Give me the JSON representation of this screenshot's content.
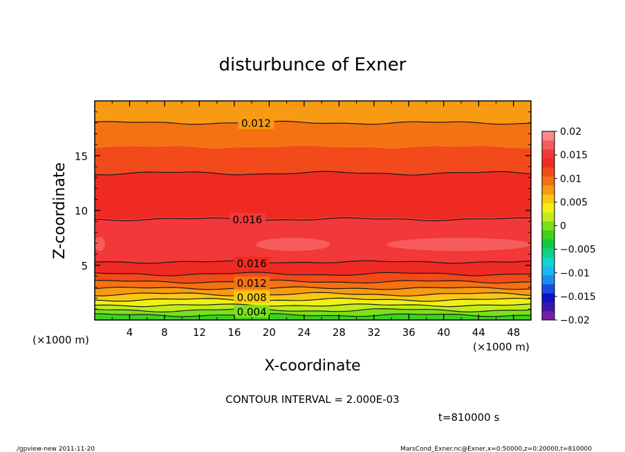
{
  "chart_data": {
    "type": "contour",
    "title": "disturbunce of Exner",
    "xlabel": "X-coordinate",
    "ylabel": "Z-coordinate",
    "x_unit_left": "(×1000 m)",
    "x_unit_right": "(×1000 m)",
    "xlim": [
      0,
      50
    ],
    "ylim": [
      0,
      20
    ],
    "x_ticks": [
      4,
      8,
      12,
      16,
      20,
      24,
      28,
      32,
      36,
      40,
      44,
      48
    ],
    "y_ticks": [
      5,
      10,
      15
    ],
    "contour_interval_text": "CONTOUR INTERVAL = 2.000E-03",
    "time_text": "t=810000 s",
    "footer_left": "./gpview-new   2011-11-20",
    "footer_right": "MarsCond_Exner.nc@Exner,x=0:50000,z=0:20000,t=810000",
    "contour_labels": [
      {
        "text": "0.012",
        "x": 18.5,
        "z": 18.0
      },
      {
        "text": "0.016",
        "x": 17.5,
        "z": 9.2
      },
      {
        "text": "0.016",
        "x": 18.0,
        "z": 5.2
      },
      {
        "text": "0.012",
        "x": 18.0,
        "z": 3.4
      },
      {
        "text": "0.008",
        "x": 18.0,
        "z": 2.1
      },
      {
        "text": "0.004",
        "x": 18.0,
        "z": 0.8
      }
    ],
    "colorbar": {
      "levels": [
        -0.02,
        -0.018,
        -0.016,
        -0.014,
        -0.012,
        -0.01,
        -0.008,
        -0.006,
        -0.004,
        -0.002,
        0,
        0.002,
        0.004,
        0.006,
        0.008,
        0.01,
        0.012,
        0.014,
        0.016,
        0.018,
        0.02
      ],
      "tick_labels": [
        "0.02",
        "0.015",
        "0.01",
        "0.005",
        "0",
        "−0.005",
        "−0.01",
        "−0.015",
        "−0.02"
      ],
      "colors": [
        "#7a1fa2",
        "#3a16b0",
        "#1010c8",
        "#1a4de0",
        "#1c8cf0",
        "#1ab8f0",
        "#11d6d6",
        "#10d08a",
        "#14c83c",
        "#3cd21e",
        "#7ae01a",
        "#c0ec1a",
        "#f0f014",
        "#f8c814",
        "#f89a12",
        "#f47212",
        "#f24a1a",
        "#ee2a22",
        "#f23838",
        "#f65c5c",
        "#fa8a8a"
      ]
    },
    "bands": [
      {
        "z0": 0.0,
        "z1": 0.45,
        "color": "#3cd21e"
      },
      {
        "z0": 0.45,
        "z1": 0.9,
        "color": "#7ae01a"
      },
      {
        "z0": 0.9,
        "z1": 1.35,
        "color": "#c0ec1a"
      },
      {
        "z0": 1.35,
        "z1": 1.85,
        "color": "#f0f014"
      },
      {
        "z0": 1.85,
        "z1": 2.35,
        "color": "#f8c814"
      },
      {
        "z0": 2.35,
        "z1": 2.9,
        "color": "#f89a12"
      },
      {
        "z0": 2.9,
        "z1": 3.5,
        "color": "#f47212"
      },
      {
        "z0": 3.5,
        "z1": 4.2,
        "color": "#f24a1a"
      },
      {
        "z0": 4.2,
        "z1": 5.3,
        "color": "#ee2a22"
      },
      {
        "z0": 5.3,
        "z1": 9.3,
        "color": "#f23838"
      },
      {
        "z0": 9.3,
        "z1": 13.4,
        "color": "#ee2a22"
      },
      {
        "z0": 13.4,
        "z1": 15.8,
        "color": "#f24a1a"
      },
      {
        "z0": 15.8,
        "z1": 18.0,
        "color": "#f47212"
      },
      {
        "z0": 18.0,
        "z1": 20.0,
        "color": "#f89a12"
      }
    ],
    "contour_lines_z": [
      0.45,
      0.9,
      1.35,
      1.85,
      2.35,
      2.9,
      3.5,
      4.2,
      5.3,
      9.2,
      13.4,
      18.0
    ],
    "highlight_regions": [
      {
        "x0": 0,
        "x1": 1.2,
        "z0": 6.3,
        "z1": 7.6,
        "color": "#f65c5c"
      },
      {
        "x0": 18.5,
        "x1": 27.0,
        "z0": 6.3,
        "z1": 7.5,
        "color": "#f65c5c"
      },
      {
        "x0": 33.5,
        "x1": 50,
        "z0": 6.3,
        "z1": 7.5,
        "color": "#f65c5c"
      }
    ]
  }
}
